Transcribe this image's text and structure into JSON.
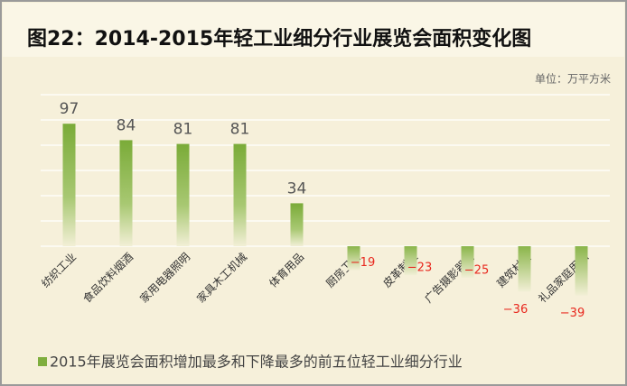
{
  "chart_data": {
    "type": "bar",
    "title": "图22：2014-2015年轻工业细分行业展览会面积变化图",
    "subtitle": "单位：万平方米",
    "categories": [
      "纺织工业",
      "食品饮料烟酒",
      "家用电器照明",
      "家具木工机械",
      "体育用品",
      "厨房卫浴",
      "皮革制鞋",
      "广告摄影器材",
      "建筑材料",
      "礼品家庭用品"
    ],
    "series": [
      {
        "name": "2015年展览会面积增加最多和下降最多的前五位轻工业细分行业",
        "color": "#7fae3e",
        "values": [
          97,
          84,
          81,
          81,
          34,
          -19,
          -23,
          -25,
          -36,
          -39
        ],
        "value_labels": [
          "97",
          "84",
          "81",
          "81",
          "34",
          "−19",
          "−23",
          "−25",
          "−36",
          "−39"
        ]
      }
    ],
    "ylim": [
      -40,
      120
    ],
    "yticks": [
      0,
      20,
      40,
      60,
      80,
      100,
      120
    ],
    "grid": true,
    "negative_label_color": "#e8281e",
    "positive_label_color": "#555555"
  }
}
